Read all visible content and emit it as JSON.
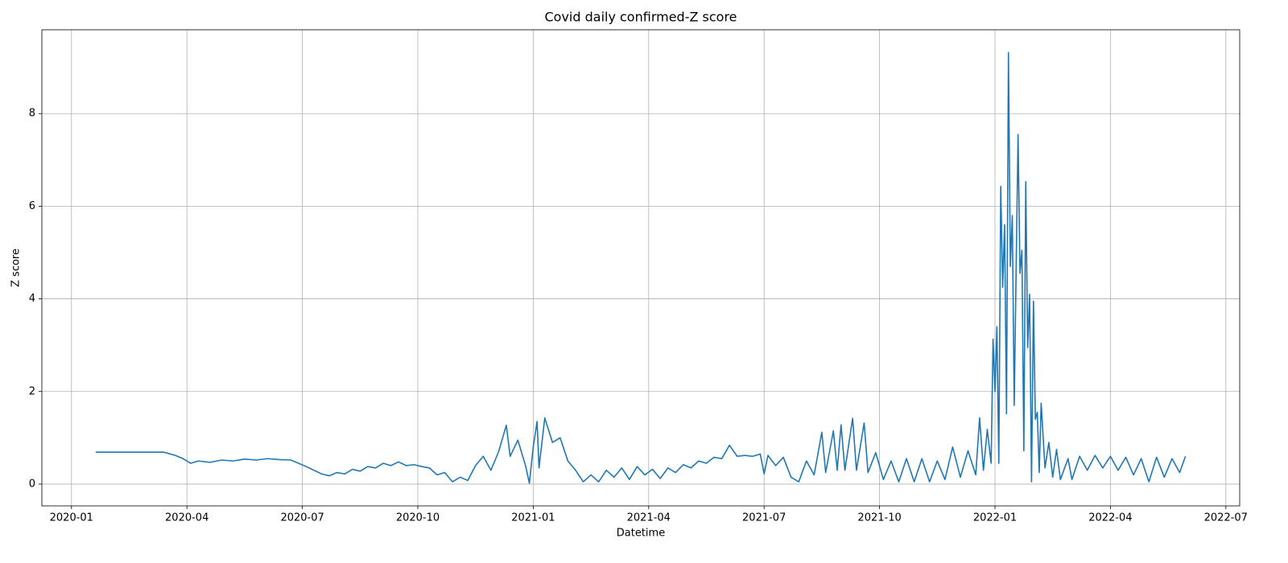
{
  "chart_data": {
    "type": "line",
    "title": "Covid daily confirmed-Z score",
    "x_label": "Datetime",
    "y_label": "Z score",
    "x": [
      0.63,
      1.5,
      2.4,
      2.7,
      2.9,
      3.1,
      3.3,
      3.6,
      3.9,
      4.2,
      4.5,
      4.8,
      5.1,
      5.4,
      5.7,
      5.9,
      6.1,
      6.3,
      6.5,
      6.7,
      6.9,
      7.1,
      7.3,
      7.5,
      7.7,
      7.9,
      8.1,
      8.3,
      8.5,
      8.7,
      8.9,
      9.1,
      9.3,
      9.5,
      9.7,
      9.9,
      10.1,
      10.3,
      10.5,
      10.7,
      10.9,
      11.1,
      11.3,
      11.4,
      11.6,
      11.8,
      11.9,
      12.0,
      12.1,
      12.15,
      12.3,
      12.5,
      12.7,
      12.9,
      13.1,
      13.3,
      13.5,
      13.7,
      13.9,
      14.1,
      14.3,
      14.5,
      14.7,
      14.9,
      15.1,
      15.3,
      15.5,
      15.7,
      15.9,
      16.1,
      16.3,
      16.5,
      16.7,
      16.9,
      17.1,
      17.3,
      17.5,
      17.7,
      17.9,
      18.0,
      18.1,
      18.3,
      18.5,
      18.7,
      18.9,
      19.1,
      19.3,
      19.5,
      19.6,
      19.8,
      19.9,
      20.0,
      20.1,
      20.3,
      20.4,
      20.6,
      20.7,
      20.9,
      21.1,
      21.3,
      21.5,
      21.7,
      21.9,
      22.1,
      22.3,
      22.5,
      22.7,
      22.9,
      23.1,
      23.3,
      23.5,
      23.6,
      23.7,
      23.8,
      23.9,
      23.95,
      24.0,
      24.05,
      24.1,
      24.15,
      24.2,
      24.25,
      24.3,
      24.35,
      24.4,
      24.45,
      24.5,
      24.6,
      24.65,
      24.7,
      24.75,
      24.8,
      24.85,
      24.9,
      24.95,
      25.0,
      25.05,
      25.1,
      25.15,
      25.2,
      25.3,
      25.4,
      25.5,
      25.6,
      25.7,
      25.9,
      26.0,
      26.2,
      26.4,
      26.6,
      26.8,
      27.0,
      27.2,
      27.4,
      27.6,
      27.8,
      28.0,
      28.2,
      28.4,
      28.6,
      28.8,
      28.95
    ],
    "series": [
      {
        "name": "Z score",
        "color": "#1f77b4",
        "values": [
          0.69,
          0.69,
          0.69,
          0.62,
          0.55,
          0.45,
          0.5,
          0.47,
          0.52,
          0.5,
          0.54,
          0.52,
          0.55,
          0.53,
          0.52,
          0.45,
          0.38,
          0.3,
          0.22,
          0.18,
          0.25,
          0.22,
          0.32,
          0.28,
          0.38,
          0.35,
          0.45,
          0.4,
          0.48,
          0.4,
          0.42,
          0.38,
          0.35,
          0.2,
          0.25,
          0.05,
          0.15,
          0.08,
          0.4,
          0.6,
          0.3,
          0.7,
          1.27,
          0.6,
          0.95,
          0.4,
          0.02,
          0.8,
          1.35,
          0.35,
          1.43,
          0.9,
          1.0,
          0.5,
          0.3,
          0.05,
          0.2,
          0.05,
          0.3,
          0.15,
          0.35,
          0.1,
          0.38,
          0.2,
          0.32,
          0.12,
          0.35,
          0.25,
          0.42,
          0.35,
          0.5,
          0.45,
          0.58,
          0.55,
          0.84,
          0.6,
          0.62,
          0.6,
          0.65,
          0.22,
          0.62,
          0.4,
          0.58,
          0.15,
          0.05,
          0.5,
          0.2,
          1.12,
          0.25,
          1.15,
          0.3,
          1.28,
          0.3,
          1.42,
          0.3,
          1.32,
          0.25,
          0.68,
          0.1,
          0.5,
          0.05,
          0.55,
          0.05,
          0.55,
          0.05,
          0.5,
          0.1,
          0.8,
          0.15,
          0.72,
          0.2,
          1.43,
          0.3,
          1.18,
          0.45,
          3.13,
          2.0,
          3.4,
          0.45,
          6.43,
          4.25,
          5.6,
          1.52,
          9.32,
          4.7,
          5.8,
          1.7,
          7.55,
          4.55,
          5.05,
          0.72,
          6.53,
          2.95,
          4.1,
          0.05,
          3.95,
          1.4,
          1.55,
          0.25,
          1.75,
          0.35,
          0.9,
          0.15,
          0.75,
          0.1,
          0.55,
          0.1,
          0.6,
          0.3,
          0.62,
          0.35,
          0.6,
          0.3,
          0.58,
          0.2,
          0.55,
          0.05,
          0.58,
          0.15,
          0.55,
          0.25,
          0.6
        ]
      }
    ],
    "xlim": [
      -0.77,
      30.36
    ],
    "ylim": [
      -0.47,
      9.81
    ],
    "xticks": [
      {
        "value": 0,
        "label": "2020-01"
      },
      {
        "value": 3,
        "label": "2020-04"
      },
      {
        "value": 6,
        "label": "2020-07"
      },
      {
        "value": 9,
        "label": "2020-10"
      },
      {
        "value": 12,
        "label": "2021-01"
      },
      {
        "value": 15,
        "label": "2021-04"
      },
      {
        "value": 18,
        "label": "2021-07"
      },
      {
        "value": 21,
        "label": "2021-10"
      },
      {
        "value": 24,
        "label": "2022-01"
      },
      {
        "value": 27,
        "label": "2022-04"
      },
      {
        "value": 30,
        "label": "2022-07"
      }
    ],
    "yticks": [
      0,
      2,
      4,
      6,
      8
    ],
    "grid": true
  }
}
